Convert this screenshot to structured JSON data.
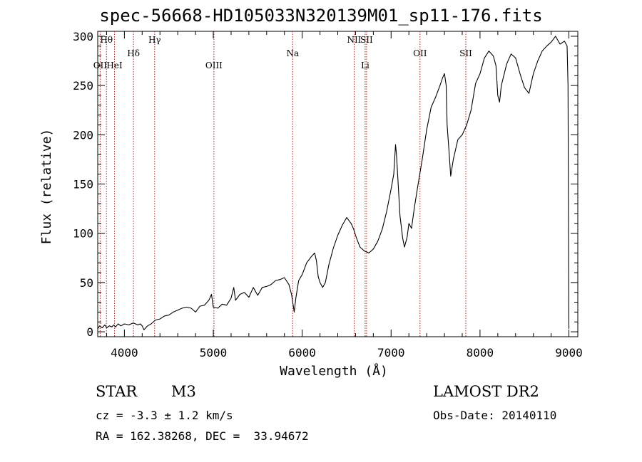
{
  "chart_data": {
    "type": "line",
    "title": "spec-56668-HD105033N320139M01_sp11-176.fits",
    "xlabel": "Wavelength (Å)",
    "ylabel": "Flux (relative)",
    "xlim": [
      3700,
      9100
    ],
    "ylim": [
      -5,
      305
    ],
    "xticks": [
      4000,
      5000,
      6000,
      7000,
      8000,
      9000
    ],
    "yticks": [
      0,
      50,
      100,
      150,
      200,
      250,
      300
    ],
    "line_color": "#000000",
    "marker_color": "#b22222",
    "series": [
      {
        "values": [
          [
            3700,
            3
          ],
          [
            3720,
            6
          ],
          [
            3750,
            4
          ],
          [
            3780,
            7
          ],
          [
            3800,
            4
          ],
          [
            3830,
            6
          ],
          [
            3860,
            5
          ],
          [
            3880,
            7
          ],
          [
            3900,
            5
          ],
          [
            3930,
            8
          ],
          [
            3960,
            6
          ],
          [
            4000,
            8
          ],
          [
            4050,
            7
          ],
          [
            4100,
            9
          ],
          [
            4150,
            7
          ],
          [
            4180,
            8
          ],
          [
            4200,
            6
          ],
          [
            4220,
            2
          ],
          [
            4260,
            6
          ],
          [
            4300,
            8
          ],
          [
            4350,
            12
          ],
          [
            4400,
            13
          ],
          [
            4450,
            16
          ],
          [
            4500,
            17
          ],
          [
            4550,
            20
          ],
          [
            4600,
            22
          ],
          [
            4650,
            24
          ],
          [
            4700,
            25
          ],
          [
            4750,
            24
          ],
          [
            4800,
            20
          ],
          [
            4850,
            26
          ],
          [
            4900,
            27
          ],
          [
            4950,
            32
          ],
          [
            4980,
            38
          ],
          [
            5000,
            25
          ],
          [
            5050,
            24
          ],
          [
            5100,
            28
          ],
          [
            5150,
            27
          ],
          [
            5200,
            34
          ],
          [
            5230,
            45
          ],
          [
            5250,
            32
          ],
          [
            5300,
            38
          ],
          [
            5350,
            40
          ],
          [
            5400,
            35
          ],
          [
            5450,
            45
          ],
          [
            5500,
            37
          ],
          [
            5550,
            45
          ],
          [
            5600,
            46
          ],
          [
            5650,
            48
          ],
          [
            5700,
            52
          ],
          [
            5750,
            53
          ],
          [
            5800,
            55
          ],
          [
            5850,
            48
          ],
          [
            5880,
            38
          ],
          [
            5900,
            26
          ],
          [
            5910,
            20
          ],
          [
            5930,
            35
          ],
          [
            5960,
            52
          ],
          [
            6000,
            58
          ],
          [
            6050,
            70
          ],
          [
            6100,
            76
          ],
          [
            6140,
            80
          ],
          [
            6160,
            72
          ],
          [
            6180,
            56
          ],
          [
            6200,
            50
          ],
          [
            6230,
            45
          ],
          [
            6260,
            50
          ],
          [
            6300,
            68
          ],
          [
            6350,
            85
          ],
          [
            6400,
            98
          ],
          [
            6450,
            108
          ],
          [
            6500,
            116
          ],
          [
            6550,
            110
          ],
          [
            6580,
            104
          ],
          [
            6600,
            98
          ],
          [
            6620,
            93
          ],
          [
            6650,
            86
          ],
          [
            6700,
            82
          ],
          [
            6750,
            80
          ],
          [
            6800,
            84
          ],
          [
            6850,
            92
          ],
          [
            6900,
            104
          ],
          [
            6950,
            122
          ],
          [
            7000,
            145
          ],
          [
            7030,
            160
          ],
          [
            7050,
            190
          ],
          [
            7060,
            180
          ],
          [
            7080,
            150
          ],
          [
            7100,
            118
          ],
          [
            7130,
            95
          ],
          [
            7150,
            86
          ],
          [
            7180,
            96
          ],
          [
            7200,
            110
          ],
          [
            7230,
            105
          ],
          [
            7260,
            125
          ],
          [
            7300,
            148
          ],
          [
            7350,
            175
          ],
          [
            7400,
            205
          ],
          [
            7450,
            228
          ],
          [
            7500,
            238
          ],
          [
            7550,
            250
          ],
          [
            7580,
            258
          ],
          [
            7600,
            262
          ],
          [
            7620,
            250
          ],
          [
            7630,
            210
          ],
          [
            7650,
            185
          ],
          [
            7670,
            158
          ],
          [
            7700,
            175
          ],
          [
            7750,
            195
          ],
          [
            7800,
            200
          ],
          [
            7850,
            210
          ],
          [
            7900,
            225
          ],
          [
            7950,
            252
          ],
          [
            8000,
            262
          ],
          [
            8050,
            278
          ],
          [
            8100,
            285
          ],
          [
            8150,
            280
          ],
          [
            8180,
            270
          ],
          [
            8200,
            240
          ],
          [
            8220,
            233
          ],
          [
            8240,
            250
          ],
          [
            8300,
            272
          ],
          [
            8350,
            282
          ],
          [
            8400,
            278
          ],
          [
            8450,
            262
          ],
          [
            8500,
            248
          ],
          [
            8550,
            242
          ],
          [
            8600,
            262
          ],
          [
            8650,
            275
          ],
          [
            8700,
            285
          ],
          [
            8750,
            290
          ],
          [
            8800,
            294
          ],
          [
            8850,
            300
          ],
          [
            8900,
            292
          ],
          [
            8950,
            295
          ],
          [
            8980,
            290
          ],
          [
            8990,
            250
          ],
          [
            9000,
            3
          ]
        ]
      }
    ],
    "lines": [
      {
        "label": "Hθ",
        "x": 3798,
        "row": 0
      },
      {
        "label": "OII",
        "x": 3727,
        "row": 2
      },
      {
        "label": "HeI",
        "x": 3889,
        "row": 2
      },
      {
        "label": "Hδ",
        "x": 4102,
        "row": 1
      },
      {
        "label": "Hγ",
        "x": 4340,
        "row": 0
      },
      {
        "label": "OIII",
        "x": 5007,
        "row": 2
      },
      {
        "label": "Na",
        "x": 5893,
        "row": 1
      },
      {
        "label": "NII",
        "x": 6584,
        "row": 0
      },
      {
        "label": "Li",
        "x": 6708,
        "row": 2
      },
      {
        "label": "SII",
        "x": 6724,
        "row": 0
      },
      {
        "label": "OII",
        "x": 7325,
        "row": 1
      },
      {
        "label": "SII",
        "x": 7840,
        "row": 1
      }
    ]
  },
  "info": {
    "object_class": "STAR",
    "subclass": "M3",
    "survey": "LAMOST DR2",
    "cz": "cz = -3.3 ± 1.2 km/s",
    "obs_date": "Obs-Date: 20140110",
    "radec": "RA = 162.38268, DEC =  33.94672"
  }
}
